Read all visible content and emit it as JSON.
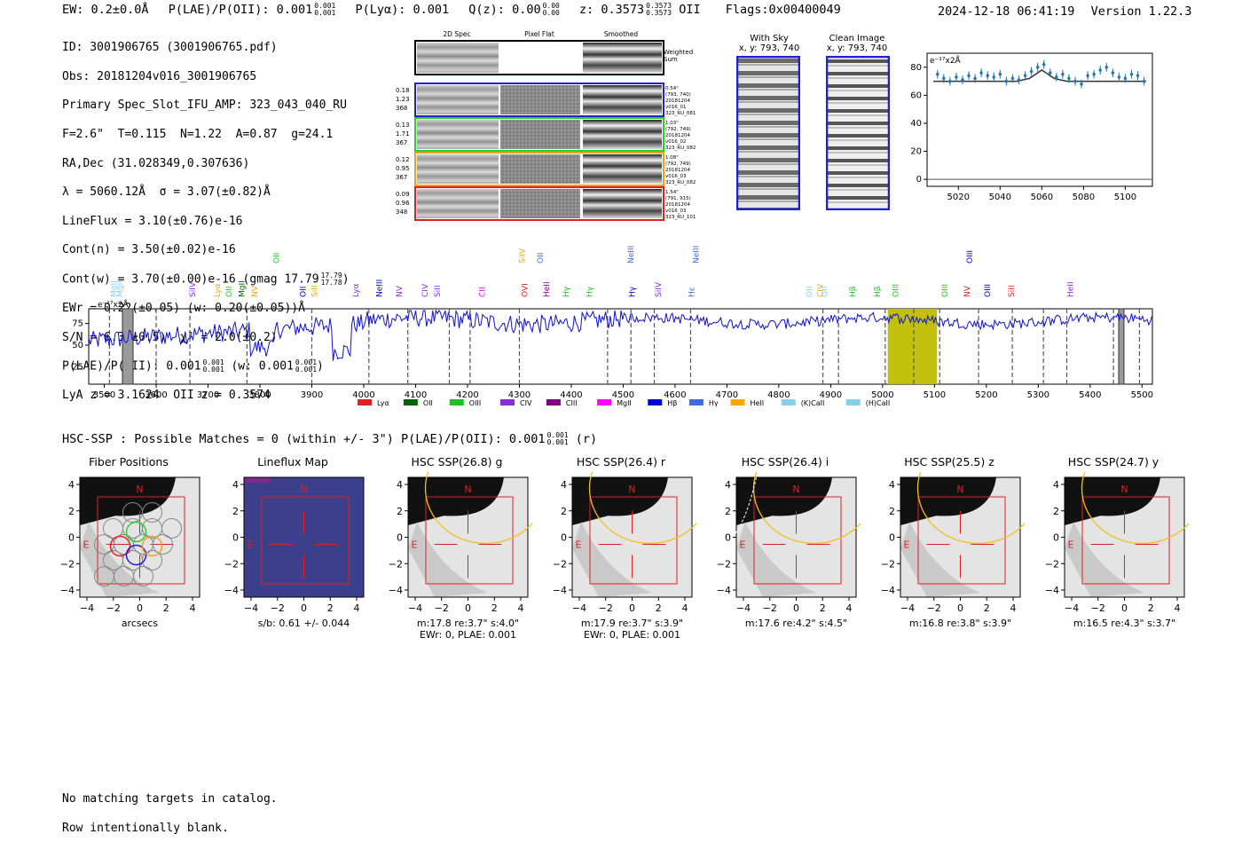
{
  "header": {
    "ew": "EW: 0.2±0.0Å",
    "plae_label": "P(LAE)/P(OII): 0.001",
    "plae_frac_top": "0.001",
    "plae_frac_bot": "0.001",
    "plya": "P(Lyα): 0.001",
    "qz_label": "Q(z): 0.00",
    "qz_frac_top": "0.00",
    "qz_frac_bot": "0.00",
    "z_label": "z: 0.3573",
    "z_frac_top": "0.3573",
    "z_frac_bot": "0.3573",
    "z_line": "OII",
    "flags": "Flags:0x00400049",
    "timestamp": "2024-12-18 06:41:19",
    "version": "Version 1.22.3"
  },
  "info": {
    "id": "ID: 3001906765 (3001906765.pdf)",
    "obs": "Obs: 20181204v016_3001906765",
    "primary": "Primary Spec_Slot_IFU_AMP: 323_043_040_RU",
    "fwhm": "F=2.6\"  T=0.115  N=1.22  A=0.87  g=24.1",
    "radec": "RA,Dec (31.028349,0.307636)",
    "lambda": "λ = 5060.12Å  σ = 3.07(±0.82)Å",
    "lineflux": "LineFlux = 3.10(±0.76)e-16",
    "contn": "Cont(n) = 3.50(±0.02)e-16",
    "contw": "Cont(w) = 3.70(±0.00)e-16 (gmag 17.79",
    "contw_frac_top": "17.79",
    "contw_frac_bot": "17.78",
    "contw_close": ")",
    "ewr": "EWr = 0.22(±0.05) (w: 0.20(±0.05))Å",
    "sn": "S/N = 6.3(±0.5)  χ² = 2.0(±0.2)",
    "plae": "P(LAE)/P(OII): 0.001",
    "plae_frac_top": "0.001",
    "plae_frac_bot": "0.001",
    "plae_w": "(w: 0.001",
    "plae_w_top": "0.001",
    "plae_w_bot": "0.001",
    "plae_close": ")",
    "lya_oii": "LyA z = 3.1624  OII z = 0.3574"
  },
  "spec2d": {
    "col_headers": [
      "2D Spec",
      "Pixel Flat",
      "Smoothed"
    ],
    "weighted_sum": [
      "Weighted",
      "Sum"
    ],
    "rows": [
      {
        "left": [
          "0.18",
          "1.23",
          "368"
        ],
        "right": [
          "0.54\"",
          "(793, 740)",
          "20181204",
          "v016_01",
          "323_RU_081"
        ],
        "color": "#1f1fd6"
      },
      {
        "left": [
          "0.13",
          "1.71",
          "367"
        ],
        "right": [
          "1.03\"",
          "(792, 749)",
          "20181204",
          "v016_02",
          "323_RU_082"
        ],
        "color": "#2ecc2e"
      },
      {
        "left": [
          "0.12",
          "0.95",
          "367"
        ],
        "right": [
          "1.08\"",
          "(792, 749)",
          "20181204",
          "v016_03",
          "323_RU_082"
        ],
        "color": "#f0a020"
      },
      {
        "left": [
          "0.09",
          "0.96",
          "348"
        ],
        "right": [
          "1.54\"",
          "(791, 915)",
          "20181204",
          "v016_03",
          "323_RU_101"
        ],
        "color": "#e02020"
      }
    ]
  },
  "sky_panels": {
    "with_sky": [
      "With Sky",
      "x, y: 793, 740"
    ],
    "clean": [
      "Clean Image",
      "x, y: 793, 740"
    ]
  },
  "chart_data": [
    {
      "type": "scatter",
      "title": "",
      "ylabel_note": "e⁻¹⁷x2Å",
      "x": [
        5010,
        5013,
        5016,
        5019,
        5022,
        5025,
        5028,
        5031,
        5034,
        5037,
        5040,
        5043,
        5046,
        5049,
        5052,
        5055,
        5058,
        5061,
        5064,
        5067,
        5070,
        5073,
        5076,
        5079,
        5082,
        5085,
        5088,
        5091,
        5094,
        5097,
        5100,
        5103,
        5106,
        5109
      ],
      "y": [
        75,
        72,
        70,
        73,
        71,
        74,
        72,
        76,
        74,
        73,
        75,
        70,
        72,
        71,
        74,
        77,
        80,
        82,
        76,
        73,
        75,
        72,
        70,
        68,
        74,
        75,
        78,
        80,
        76,
        73,
        72,
        75,
        74,
        70
      ],
      "model_x": [
        5008,
        5040,
        5048,
        5054,
        5058,
        5060,
        5062,
        5066,
        5072,
        5110
      ],
      "model_y": [
        70,
        70,
        70,
        72,
        76,
        78,
        76,
        72,
        70,
        70
      ],
      "xticks": [
        5020,
        5040,
        5060,
        5080,
        5100
      ],
      "yticks": [
        0,
        20,
        40,
        60,
        80
      ],
      "xlim": [
        5005,
        5113
      ],
      "ylim": [
        -5,
        90
      ]
    },
    {
      "type": "line",
      "title": "",
      "ylabel_note": "e⁻¹⁷x2Å",
      "xlim": [
        3470,
        5520
      ],
      "ylim": [
        5,
        92
      ],
      "xticks": [
        3500,
        3600,
        3700,
        3800,
        3900,
        4000,
        4100,
        4200,
        4300,
        4400,
        4500,
        4600,
        4700,
        4800,
        4900,
        5000,
        5100,
        5200,
        5300,
        5400,
        5500
      ],
      "yticks": [
        25,
        50,
        75
      ],
      "highlight": [
        5010,
        5105
      ],
      "dashed_lines": [
        3510,
        3600,
        3665,
        3775,
        3900,
        4010,
        4085,
        4165,
        4205,
        4300,
        4470,
        4515,
        4560,
        4630,
        4885,
        4915,
        5005,
        5060,
        5110,
        5185,
        5250,
        5310,
        5355,
        5445,
        5495
      ],
      "emission_labels": [
        {
          "x": 3518,
          "label": "MgII",
          "color": "#87ceeb",
          "tier": 2
        },
        {
          "x": 3530,
          "label": "MgII",
          "color": "#87ceeb",
          "tier": 2
        },
        {
          "x": 3670,
          "label": "SiIV",
          "color": "#8a2be2",
          "tier": 1
        },
        {
          "x": 3718,
          "label": "Lyα",
          "color": "#ffa500",
          "tier": 1
        },
        {
          "x": 3740,
          "label": "OII",
          "color": "#1ec41e",
          "tier": 1
        },
        {
          "x": 3765,
          "label": "MgII",
          "color": "#006400",
          "tier": 1
        },
        {
          "x": 3790,
          "label": "NV",
          "color": "#ffa500",
          "tier": 1
        },
        {
          "x": 3832,
          "label": "OII",
          "color": "#1ec41e",
          "tier": 3
        },
        {
          "x": 3883,
          "label": "OII",
          "color": "#0000cd",
          "tier": 1
        },
        {
          "x": 3905,
          "label": "SiII",
          "color": "#ffa500",
          "tier": 1
        },
        {
          "x": 3985,
          "label": "Lyα",
          "color": "#8a2be2",
          "tier": 1
        },
        {
          "x": 4030,
          "label": "NeIII",
          "color": "#0000cd",
          "tier": 1
        },
        {
          "x": 4068,
          "label": "NV",
          "color": "#8a2be2",
          "tier": 1
        },
        {
          "x": 4118,
          "label": "CIV",
          "color": "#8a2be2",
          "tier": 1
        },
        {
          "x": 4142,
          "label": "SiII",
          "color": "#8a2be2",
          "tier": 1
        },
        {
          "x": 4228,
          "label": "CII",
          "color": "#ff00ff",
          "tier": 1
        },
        {
          "x": 4305,
          "label": "SiIV",
          "color": "#ffa500",
          "tier": 3
        },
        {
          "x": 4310,
          "label": "OVI",
          "color": "#e02020",
          "tier": 1
        },
        {
          "x": 4340,
          "label": "OII",
          "color": "#4169e1",
          "tier": 3
        },
        {
          "x": 4352,
          "label": "HeII",
          "color": "#8b008b",
          "tier": 1
        },
        {
          "x": 4390,
          "label": "Hγ",
          "color": "#1ec41e",
          "tier": 1
        },
        {
          "x": 4435,
          "label": "Hγ",
          "color": "#1ec41e",
          "tier": 1
        },
        {
          "x": 4515,
          "label": "NeIII",
          "color": "#4169e1",
          "tier": 3
        },
        {
          "x": 4517,
          "label": "Hγ",
          "color": "#0000cd",
          "tier": 1
        },
        {
          "x": 4568,
          "label": "SiIV",
          "color": "#8a2be2",
          "tier": 1
        },
        {
          "x": 4632,
          "label": "Hε",
          "color": "#4169e1",
          "tier": 1
        },
        {
          "x": 4640,
          "label": "NeIII",
          "color": "#4169e1",
          "tier": 3
        },
        {
          "x": 4858,
          "label": "OII",
          "color": "#87ceeb",
          "tier": 1
        },
        {
          "x": 4880,
          "label": "CIV",
          "color": "#ffa500",
          "tier": 1
        },
        {
          "x": 4888,
          "label": "OII",
          "color": "#87ceeb",
          "tier": 1
        },
        {
          "x": 4942,
          "label": "Hβ",
          "color": "#1ec41e",
          "tier": 1
        },
        {
          "x": 4990,
          "label": "Hβ",
          "color": "#1ec41e",
          "tier": 1
        },
        {
          "x": 5025,
          "label": "OIII",
          "color": "#1ec41e",
          "tier": 1
        },
        {
          "x": 5120,
          "label": "OIII",
          "color": "#1ec41e",
          "tier": 1
        },
        {
          "x": 5163,
          "label": "NV",
          "color": "#e02020",
          "tier": 1
        },
        {
          "x": 5168,
          "label": "OIII",
          "color": "#0000cd",
          "tier": 3
        },
        {
          "x": 5202,
          "label": "OIII",
          "color": "#0000cd",
          "tier": 1
        },
        {
          "x": 5248,
          "label": "SiII",
          "color": "#e02020",
          "tier": 1
        },
        {
          "x": 5362,
          "label": "HeII",
          "color": "#8a2be2",
          "tier": 1
        }
      ],
      "legend": [
        {
          "label": "Lyα",
          "color": "#e02020"
        },
        {
          "label": "OII",
          "color": "#006400"
        },
        {
          "label": "OIII",
          "color": "#1ec41e"
        },
        {
          "label": "CIV",
          "color": "#8a2be2"
        },
        {
          "label": "CIII",
          "color": "#800080"
        },
        {
          "label": "MgII",
          "color": "#ff00ff"
        },
        {
          "label": "Hβ",
          "color": "#0000cd"
        },
        {
          "label": "Hγ",
          "color": "#4169e1"
        },
        {
          "label": "HeII",
          "color": "#ffa500"
        },
        {
          "label": "(K)CaII",
          "color": "#87ceeb"
        },
        {
          "label": "(H)CaII",
          "color": "#87ceeb"
        }
      ]
    }
  ],
  "hsc": {
    "title": "HSC-SSP : Possible Matches = 0 (within +/- 3\")  P(LAE)/P(OII): 0.001",
    "title_frac_top": "0.001",
    "title_frac_bot": "0.001",
    "title_suffix": "(r)",
    "panels": [
      {
        "title": "Fiber Positions",
        "caption1": "arcsecs",
        "caption2": ""
      },
      {
        "title": "Lineflux Map",
        "caption1": "s/b: 0.61 +/- 0.044",
        "caption2": ""
      },
      {
        "title": "HSC SSP(26.8) g",
        "caption1": "m:17.8  re:3.7\"  s:4.0\"",
        "caption2": "EWr: 0, PLAE: 0.001"
      },
      {
        "title": "HSC SSP(26.4) r",
        "caption1": "m:17.9  re:3.7\"  s:3.9\"",
        "caption2": "EWr: 0, PLAE: 0.001"
      },
      {
        "title": "HSC SSP(26.4) i",
        "caption1": "m:17.6  re:4.2\"  s:4.5\"",
        "caption2": ""
      },
      {
        "title": "HSC SSP(25.5) z",
        "caption1": "m:16.8  re:3.8\"  s:3.9\"",
        "caption2": ""
      },
      {
        "title": "HSC SSP(24.7) y",
        "caption1": "m:16.5  re:4.3\"  s:3.7\"",
        "caption2": ""
      }
    ],
    "axis_ticks": [
      "4",
      "2",
      "0",
      "−2",
      "−4"
    ],
    "x_ticks": [
      "−4",
      "−2",
      "0",
      "2",
      "4"
    ],
    "north": "N",
    "east": "E"
  },
  "footer": {
    "line1": "No matching targets in catalog.",
    "line2": "Row intentionally blank."
  }
}
